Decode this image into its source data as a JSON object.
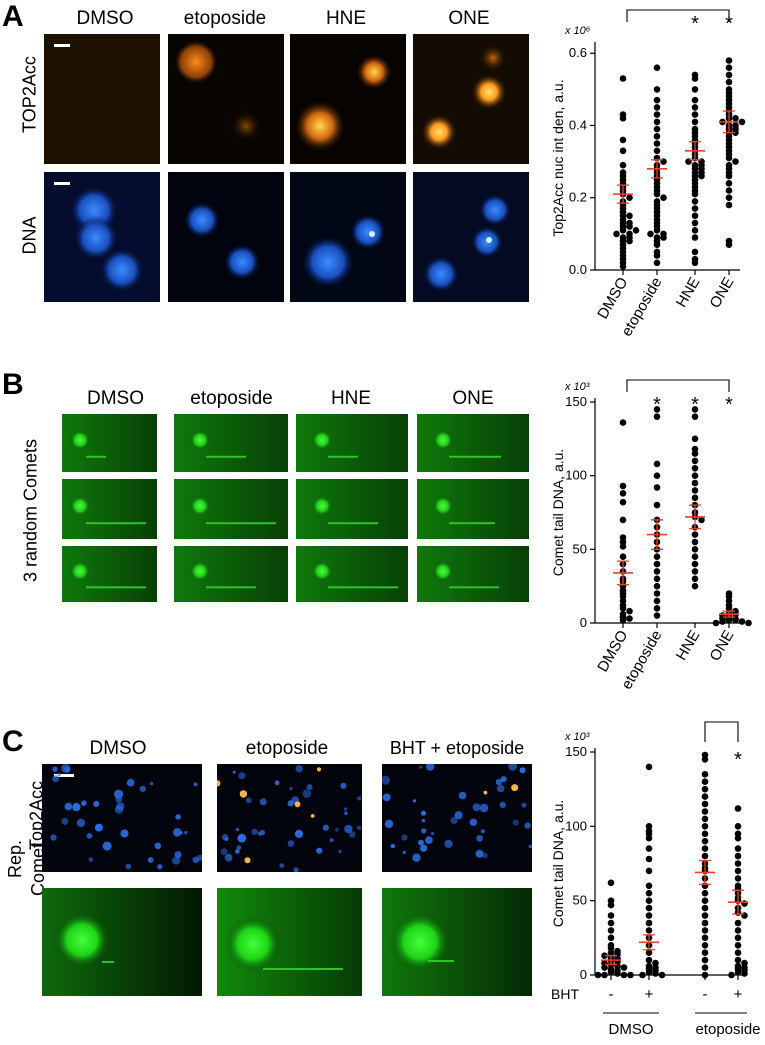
{
  "panelA": {
    "letter": "A",
    "columns": [
      "DMSO",
      "etoposide",
      "HNE",
      "ONE"
    ],
    "rows": [
      "TOP2Acc",
      "DNA"
    ]
  },
  "panelB": {
    "letter": "B",
    "columns": [
      "DMSO",
      "etoposide",
      "HNE",
      "ONE"
    ],
    "row_label": "3 random Comets"
  },
  "panelC": {
    "letter": "C",
    "columns": [
      "DMSO",
      "etoposide",
      "BHT + etoposide"
    ],
    "rows": [
      "Top2Acc",
      "Rep.",
      "Comet"
    ]
  },
  "colors": {
    "point": "#000000",
    "mean_bar": "#e8412a",
    "tail_bar": "#2fc22a",
    "comet": "#2ee02a",
    "nucleus_blue": "#1f6bff",
    "orange": "#ff9a1f"
  },
  "chart_data": [
    {
      "type": "scatter",
      "panel": "A",
      "ylabel": "Top2Acc nuc int den, a.u.",
      "y_multiplier": "x 10⁶",
      "categories": [
        "DMSO",
        "etoposide",
        "HNE",
        "ONE"
      ],
      "yticks": [
        0.0,
        0.2,
        0.4,
        0.6
      ],
      "ylim": [
        0,
        0.62
      ],
      "means": [
        0.21,
        0.28,
        0.33,
        0.41
      ],
      "sem": [
        0.025,
        0.025,
        0.025,
        0.03
      ],
      "significance": [
        "",
        "",
        "*",
        "*"
      ],
      "bracket": "DMSO-ONE",
      "series": [
        {
          "values": [
            0.53,
            0.43,
            0.42,
            0.36,
            0.33,
            0.29,
            0.27,
            0.26,
            0.25,
            0.24,
            0.23,
            0.22,
            0.21,
            0.2,
            0.19,
            0.18,
            0.17,
            0.16,
            0.15,
            0.14,
            0.13,
            0.12,
            0.12,
            0.11,
            0.1,
            0.1,
            0.09,
            0.09,
            0.08,
            0.07,
            0.06,
            0.05,
            0.04,
            0.03,
            0.02,
            0.01,
            0.15,
            0.13,
            0.11,
            0.08
          ]
        },
        {
          "values": [
            0.56,
            0.5,
            0.47,
            0.45,
            0.43,
            0.41,
            0.39,
            0.37,
            0.35,
            0.33,
            0.31,
            0.3,
            0.29,
            0.28,
            0.27,
            0.26,
            0.25,
            0.24,
            0.23,
            0.22,
            0.21,
            0.2,
            0.19,
            0.18,
            0.17,
            0.16,
            0.15,
            0.14,
            0.13,
            0.12,
            0.11,
            0.1,
            0.1,
            0.09,
            0.09,
            0.08,
            0.07,
            0.05,
            0.04,
            0.02
          ]
        },
        {
          "values": [
            0.54,
            0.53,
            0.5,
            0.47,
            0.45,
            0.43,
            0.41,
            0.39,
            0.38,
            0.37,
            0.36,
            0.35,
            0.34,
            0.33,
            0.32,
            0.31,
            0.3,
            0.3,
            0.29,
            0.29,
            0.28,
            0.28,
            0.27,
            0.27,
            0.26,
            0.26,
            0.25,
            0.24,
            0.23,
            0.22,
            0.21,
            0.19,
            0.17,
            0.15,
            0.13,
            0.11,
            0.09,
            0.05,
            0.03,
            0.02
          ]
        },
        {
          "values": [
            0.58,
            0.56,
            0.54,
            0.52,
            0.5,
            0.49,
            0.48,
            0.47,
            0.46,
            0.45,
            0.44,
            0.43,
            0.42,
            0.42,
            0.41,
            0.41,
            0.4,
            0.4,
            0.39,
            0.39,
            0.38,
            0.38,
            0.37,
            0.36,
            0.35,
            0.34,
            0.33,
            0.32,
            0.31,
            0.3,
            0.29,
            0.28,
            0.27,
            0.26,
            0.24,
            0.22,
            0.2,
            0.18,
            0.08,
            0.07
          ]
        }
      ]
    },
    {
      "type": "scatter",
      "panel": "B",
      "ylabel": "Comet tail DNA, a.u.",
      "y_multiplier": "x 10³",
      "categories": [
        "DMSO",
        "etoposide",
        "HNE",
        "ONE"
      ],
      "yticks": [
        0,
        50,
        100,
        150
      ],
      "ylim": [
        0,
        150
      ],
      "means": [
        34,
        60,
        72,
        6
      ],
      "sem": [
        8,
        10,
        8,
        2
      ],
      "significance": [
        "",
        "*",
        "*",
        "*"
      ],
      "bracket": "DMSO-ONE",
      "series": [
        {
          "values": [
            136,
            93,
            88,
            82,
            70,
            58,
            55,
            52,
            45,
            40,
            35,
            30,
            28,
            25,
            22,
            20,
            18,
            15,
            12,
            10,
            8,
            6,
            4,
            3,
            2
          ]
        },
        {
          "values": [
            145,
            140,
            108,
            100,
            92,
            80,
            70,
            65,
            60,
            55,
            50,
            45,
            40,
            35,
            30,
            25,
            20,
            15,
            10,
            5
          ]
        },
        {
          "values": [
            145,
            140,
            125,
            118,
            115,
            110,
            105,
            100,
            95,
            90,
            85,
            80,
            75,
            72,
            70,
            65,
            60,
            55,
            50,
            45,
            40,
            35,
            30,
            25
          ]
        },
        {
          "values": [
            20,
            18,
            15,
            12,
            10,
            8,
            7,
            6,
            5,
            4,
            3,
            3,
            2,
            2,
            1,
            1,
            0,
            0
          ]
        }
      ]
    },
    {
      "type": "scatter",
      "panel": "C",
      "ylabel": "Comet tail DNA, a.u.",
      "y_multiplier": "x 10³",
      "categories": [
        "-",
        "+",
        "-",
        "+"
      ],
      "row_label": "BHT",
      "groups": [
        "DMSO",
        "etoposide"
      ],
      "yticks": [
        0,
        50,
        100,
        150
      ],
      "ylim": [
        0,
        150
      ],
      "means": [
        10,
        22,
        69,
        49
      ],
      "sem": [
        3,
        5,
        8,
        8
      ],
      "significance": [
        "",
        "",
        "",
        "*"
      ],
      "bracket": "etoposide(-)-etoposide(+)",
      "series": [
        {
          "values": [
            62,
            50,
            47,
            40,
            35,
            30,
            25,
            20,
            18,
            16,
            15,
            14,
            13,
            12,
            11,
            10,
            9,
            8,
            7,
            6,
            5,
            5,
            4,
            3,
            2,
            1,
            0,
            0,
            0,
            0
          ]
        },
        {
          "values": [
            140,
            100,
            97,
            95,
            92,
            85,
            78,
            70,
            60,
            55,
            50,
            45,
            40,
            35,
            30,
            25,
            20,
            15,
            10,
            8,
            6,
            5,
            4,
            3,
            2,
            1,
            0,
            0
          ]
        },
        {
          "values": [
            148,
            145,
            135,
            130,
            125,
            120,
            115,
            110,
            105,
            100,
            95,
            90,
            85,
            80,
            75,
            72,
            70,
            65,
            60,
            55,
            50,
            45,
            40,
            35,
            30,
            25,
            20,
            15,
            10,
            5,
            0
          ]
        },
        {
          "values": [
            112,
            100,
            95,
            92,
            85,
            80,
            75,
            70,
            65,
            60,
            58,
            55,
            52,
            50,
            48,
            45,
            42,
            40,
            35,
            30,
            25,
            20,
            15,
            10,
            8,
            6,
            5,
            4,
            3,
            2,
            1,
            0
          ]
        }
      ]
    }
  ]
}
